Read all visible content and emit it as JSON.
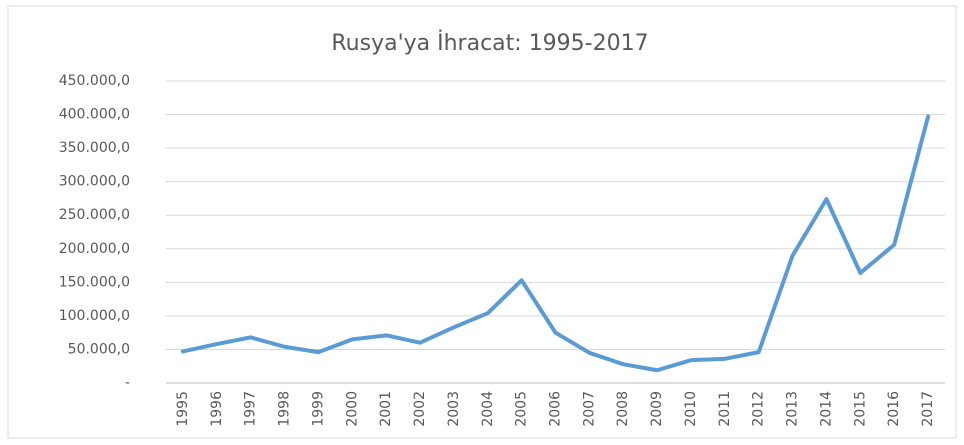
{
  "chart_data": {
    "type": "line",
    "title": "Rusya'ya İhracat: 1995-2017",
    "categories": [
      "1995",
      "1996",
      "1997",
      "1998",
      "1999",
      "2000",
      "2001",
      "2002",
      "2003",
      "2004",
      "2005",
      "2006",
      "2007",
      "2008",
      "2009",
      "2010",
      "2011",
      "2012",
      "2013",
      "2014",
      "2015",
      "2016",
      "2017"
    ],
    "series": [
      {
        "name": "Rusya'ya İhracat",
        "color": "#5b9bd5",
        "values": [
          47000,
          58000,
          68000,
          54000,
          46000,
          65000,
          71000,
          60000,
          83000,
          104000,
          153000,
          75000,
          45000,
          28000,
          19000,
          34000,
          36000,
          46000,
          190000,
          274000,
          164000,
          206000,
          397000
        ]
      }
    ],
    "ylim": [
      0,
      450000
    ],
    "yticks": [
      {
        "value": 0,
        "label": "-"
      },
      {
        "value": 50000,
        "label": "50.000,0"
      },
      {
        "value": 100000,
        "label": "100.000,0"
      },
      {
        "value": 150000,
        "label": "150.000,0"
      },
      {
        "value": 200000,
        "label": "200.000,0"
      },
      {
        "value": 250000,
        "label": "250.000,0"
      },
      {
        "value": 300000,
        "label": "300.000,0"
      },
      {
        "value": 350000,
        "label": "350.000,0"
      },
      {
        "value": 400000,
        "label": "400.000,0"
      },
      {
        "value": 450000,
        "label": "450.000,0"
      }
    ],
    "grid": true
  }
}
